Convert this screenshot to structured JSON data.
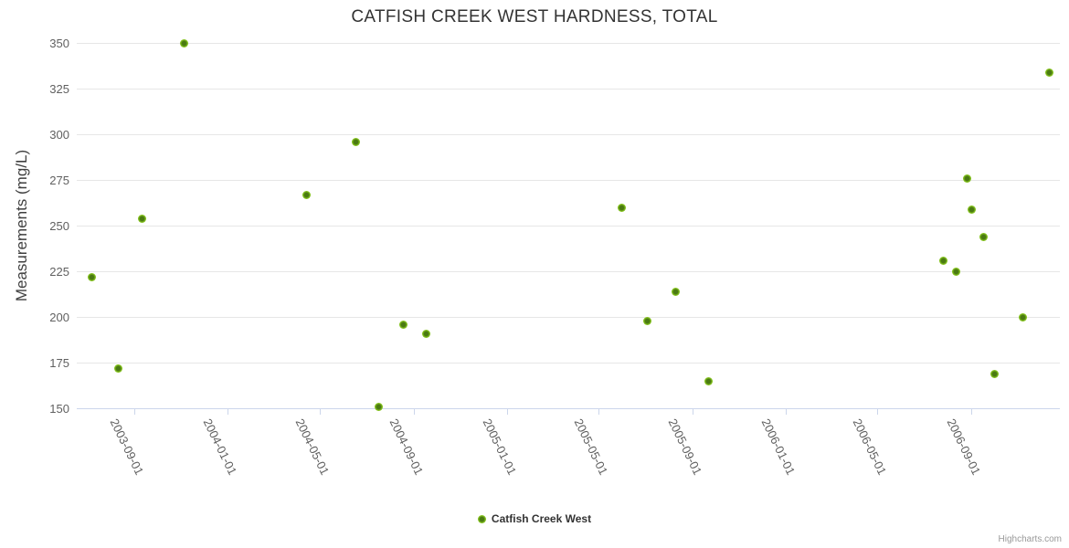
{
  "chart_data": {
    "type": "scatter",
    "title": "CATFISH CREEK WEST HARDNESS, TOTAL",
    "xlabel": "",
    "ylabel": "Measurements (mg/L)",
    "grid": true,
    "legend_position": "bottom-center",
    "x_axis": {
      "type": "datetime",
      "min": "2003-06-18",
      "max": "2006-12-26",
      "ticks": [
        "2003-09-01",
        "2004-01-01",
        "2004-05-01",
        "2004-09-01",
        "2005-01-01",
        "2005-05-01",
        "2005-09-01",
        "2006-01-01",
        "2006-05-01",
        "2006-09-01"
      ]
    },
    "y_axis": {
      "min": 150,
      "max": 350,
      "tick_interval": 25,
      "ticks": [
        150,
        175,
        200,
        225,
        250,
        275,
        300,
        325,
        350
      ]
    },
    "series": [
      {
        "name": "Catfish Creek West",
        "points": [
          {
            "date": "2003-07-08",
            "value": 222
          },
          {
            "date": "2003-08-12",
            "value": 172
          },
          {
            "date": "2003-09-11",
            "value": 254
          },
          {
            "date": "2003-11-06",
            "value": 350
          },
          {
            "date": "2004-04-14",
            "value": 267
          },
          {
            "date": "2004-06-17",
            "value": 296
          },
          {
            "date": "2004-07-17",
            "value": 151
          },
          {
            "date": "2004-08-19",
            "value": 196
          },
          {
            "date": "2004-09-18",
            "value": 191
          },
          {
            "date": "2005-05-31",
            "value": 260
          },
          {
            "date": "2005-07-04",
            "value": 198
          },
          {
            "date": "2005-08-10",
            "value": 214
          },
          {
            "date": "2005-09-22",
            "value": 165
          },
          {
            "date": "2006-07-27",
            "value": 231
          },
          {
            "date": "2006-08-12",
            "value": 225
          },
          {
            "date": "2006-08-26",
            "value": 276
          },
          {
            "date": "2006-09-01",
            "value": 259
          },
          {
            "date": "2006-09-17",
            "value": 244
          },
          {
            "date": "2006-10-01",
            "value": 169
          },
          {
            "date": "2006-11-07",
            "value": 200
          },
          {
            "date": "2006-12-12",
            "value": 334
          }
        ]
      }
    ]
  },
  "legend": {
    "label": "Catfish Creek West"
  },
  "credits": {
    "label": "Highcharts.com"
  },
  "colors": {
    "title_text": "#333333",
    "axis_label_text": "#606060",
    "axis_title_text": "#3f3f3f",
    "gridline": "#e6e6e6",
    "axis_line": "#ccd6eb",
    "marker": "#86c41e",
    "marker_center": "#4a7a12",
    "legend_text": "#333333",
    "credits_text": "#999999"
  }
}
